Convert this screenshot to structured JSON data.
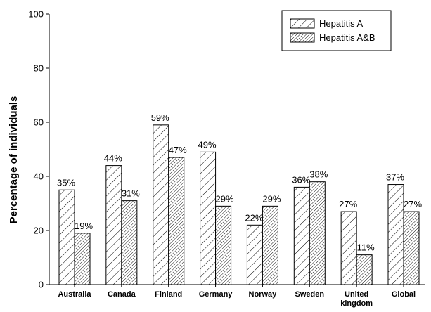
{
  "chart_data": {
    "type": "bar",
    "title": "",
    "xlabel": "",
    "ylabel": "Percentage of individuals",
    "ylim": [
      0,
      100
    ],
    "yticks": [
      0,
      20,
      40,
      60,
      80,
      100
    ],
    "grid": false,
    "legend_position": "top-right",
    "categories": [
      "Australia",
      "Canada",
      "Finland",
      "Germany",
      "Norway",
      "Sweden",
      "United kingdom",
      "Global"
    ],
    "category_lines": [
      [
        "Australia"
      ],
      [
        "Canada"
      ],
      [
        "Finland"
      ],
      [
        "Germany"
      ],
      [
        "Norway"
      ],
      [
        "Sweden"
      ],
      [
        "United",
        "kingdom"
      ],
      [
        "Global"
      ]
    ],
    "series": [
      {
        "name": "Hepatitis A",
        "pattern": "sparse-diagonal-hatch",
        "values": [
          35,
          44,
          59,
          49,
          22,
          36,
          27,
          37
        ],
        "labels": [
          "35%",
          "44%",
          "59%",
          "49%",
          "22%",
          "36%",
          "27%",
          "37%"
        ]
      },
      {
        "name": "Hepatitis A&B",
        "pattern": "dense-diagonal-hatch",
        "values": [
          19,
          31,
          47,
          29,
          29,
          38,
          11,
          27
        ],
        "labels": [
          "19%",
          "31%",
          "47%",
          "29%",
          "29%",
          "38%",
          "11%",
          "27%"
        ]
      }
    ],
    "colors": {
      "stroke": "#000000",
      "background": "#ffffff"
    }
  }
}
